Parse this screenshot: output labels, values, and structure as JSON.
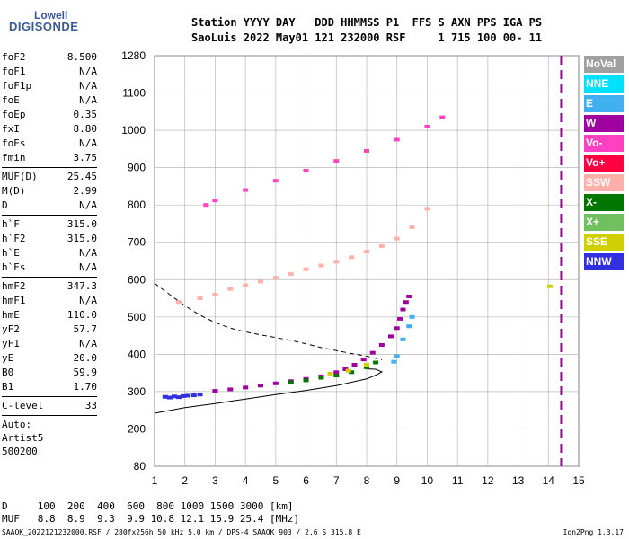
{
  "logo": {
    "line1": "Lowell",
    "line2": "DIGISONDE"
  },
  "header": {
    "labels": "Station YYYY DAY   DDD HHMMSS P1  FFS S AXN PPS IGA PS",
    "values": "SaoLuis 2022 May01 121 232000 RSF     1 715 100 00- 11"
  },
  "params": [
    {
      "label": "foF2",
      "value": "8.500"
    },
    {
      "label": "foF1",
      "value": "N/A"
    },
    {
      "label": "foF1p",
      "value": "N/A"
    },
    {
      "label": "foE",
      "value": "N/A"
    },
    {
      "label": "foEp",
      "value": "0.35"
    },
    {
      "label": "fxI",
      "value": "8.80"
    },
    {
      "label": "foEs",
      "value": "N/A"
    },
    {
      "label": "fmin",
      "value": "3.75"
    },
    {
      "sep": true
    },
    {
      "label": "MUF(D)",
      "value": "25.45"
    },
    {
      "label": "M(D)",
      "value": "2.99"
    },
    {
      "label": "D",
      "value": "N/A"
    },
    {
      "sep": true
    },
    {
      "label": "h`F",
      "value": "315.0"
    },
    {
      "label": "h`F2",
      "value": "315.0"
    },
    {
      "label": "h`E",
      "value": "N/A"
    },
    {
      "label": "h`Es",
      "value": "N/A"
    },
    {
      "sep": true
    },
    {
      "label": "hmF2",
      "value": "347.3"
    },
    {
      "label": "hmF1",
      "value": "N/A"
    },
    {
      "label": "hmE",
      "value": "110.0"
    },
    {
      "label": "yF2",
      "value": "57.7"
    },
    {
      "label": "yF1",
      "value": "N/A"
    },
    {
      "label": "yE",
      "value": "20.0"
    },
    {
      "label": "B0",
      "value": "59.9"
    },
    {
      "label": "B1",
      "value": "1.70"
    },
    {
      "sep": true
    },
    {
      "label": "C-level",
      "value": "33"
    },
    {
      "sep": true
    },
    {
      "text": "Auto:"
    },
    {
      "text": "Artist5"
    },
    {
      "text": "500200"
    }
  ],
  "legend": [
    {
      "label": "NoVal",
      "color": "#a0a0a0"
    },
    {
      "label": "NNE",
      "color": "#00e0ff"
    },
    {
      "label": "E",
      "color": "#40b0f0"
    },
    {
      "label": "W",
      "color": "#a000a0"
    },
    {
      "label": "Vo-",
      "color": "#ff40c0"
    },
    {
      "label": "Vo+",
      "color": "#ff0040"
    },
    {
      "label": "SSW",
      "color": "#ffb0a8"
    },
    {
      "label": "X-",
      "color": "#007800"
    },
    {
      "label": "X+",
      "color": "#70c060"
    },
    {
      "label": "SSE",
      "color": "#d0d000"
    },
    {
      "label": "NNW",
      "color": "#3030e0"
    }
  ],
  "bottom": {
    "line1": "D     100  200  400  600  800 1000 1500 3000 [km]",
    "line2": "MUF   8.8  8.9  9.3  9.9 10.8 12.1 15.9 25.4 [MHz]",
    "footer": "SAAOK_2022121232000.RSF / 280fx256h 50 kHz 5.0 km / DPS-4 SAAOK 903 / 2.6 S 315.8 E",
    "version": "Ion2Png 1.3.17"
  },
  "chart_data": {
    "type": "scatter",
    "xlim": [
      1,
      15
    ],
    "ylim": [
      80,
      1280
    ],
    "x_ticks": [
      1,
      2,
      3,
      4,
      5,
      6,
      7,
      8,
      9,
      10,
      11,
      12,
      13,
      14,
      15
    ],
    "y_ticks": [
      80,
      200,
      300,
      400,
      500,
      600,
      700,
      800,
      900,
      1000,
      1100,
      1280
    ],
    "grid": true,
    "legend_position": "right",
    "series": [
      {
        "name": "W",
        "color": "#a000a0",
        "x": [
          3.0,
          3.5,
          4.0,
          4.5,
          5.0,
          5.5,
          6.0,
          6.5,
          7.0,
          7.3,
          7.6,
          7.9,
          8.2,
          8.5,
          8.8,
          9.0,
          9.1,
          9.2,
          9.3,
          9.4
        ],
        "y": [
          302,
          306,
          311,
          316,
          322,
          328,
          334,
          341,
          352,
          360,
          372,
          386,
          404,
          425,
          448,
          470,
          495,
          520,
          540,
          555
        ]
      },
      {
        "name": "NNW",
        "color": "#3030e0",
        "x": [
          1.35,
          1.5,
          1.65,
          1.8,
          1.95,
          2.1,
          2.3,
          2.5
        ],
        "y": [
          286,
          284,
          287,
          285,
          288,
          289,
          290,
          292
        ]
      },
      {
        "name": "SSW",
        "color": "#ffb0a8",
        "x": [
          1.8,
          2.5,
          3.0,
          3.5,
          4.0,
          4.5,
          5.0,
          5.5,
          6.0,
          6.5,
          7.0,
          7.5,
          8.0,
          8.5,
          9.0,
          9.5,
          10.0
        ],
        "y": [
          540,
          550,
          560,
          575,
          585,
          595,
          605,
          615,
          628,
          638,
          648,
          660,
          675,
          690,
          710,
          740,
          790
        ]
      },
      {
        "name": "Vo-",
        "color": "#ff40c0",
        "x": [
          2.7,
          3.0,
          4.0,
          5.0,
          6.0,
          7.0,
          8.0,
          9.0,
          10.0,
          10.5
        ],
        "y": [
          800,
          812,
          840,
          865,
          892,
          918,
          945,
          975,
          1010,
          1035
        ]
      },
      {
        "name": "X-",
        "color": "#007800",
        "x": [
          5.5,
          6.0,
          6.5,
          7.0,
          7.5,
          8.0,
          8.3
        ],
        "y": [
          325,
          330,
          337,
          343,
          352,
          365,
          378
        ]
      },
      {
        "name": "E",
        "color": "#40b0f0",
        "x": [
          8.9,
          9.0,
          9.2,
          9.4,
          9.5
        ],
        "y": [
          380,
          395,
          440,
          475,
          500
        ]
      },
      {
        "name": "SSE",
        "color": "#d0d000",
        "x": [
          6.8,
          7.4,
          8.0,
          14.05
        ],
        "y": [
          348,
          356,
          372,
          582
        ]
      }
    ],
    "curves": [
      {
        "name": "profile",
        "style": "solid",
        "x": [
          1,
          2,
          3,
          4,
          5,
          6,
          7,
          8,
          8.3,
          8.5,
          8.3,
          8.0
        ],
        "y": [
          242,
          257,
          268,
          280,
          292,
          303,
          316,
          334,
          344,
          353,
          360,
          361
        ]
      },
      {
        "name": "virtual-height",
        "style": "dashed",
        "x": [
          1,
          1.5,
          2,
          2.5,
          3,
          3.5,
          4,
          4.5,
          5,
          5.5,
          6,
          6.5,
          7,
          7.5,
          8,
          8.5
        ],
        "y": [
          590,
          560,
          530,
          505,
          485,
          470,
          460,
          452,
          445,
          437,
          428,
          418,
          410,
          402,
          395,
          385
        ]
      }
    ],
    "x_trace": {
      "x": 14.42,
      "y_from": 1280,
      "y_to": 80
    }
  }
}
